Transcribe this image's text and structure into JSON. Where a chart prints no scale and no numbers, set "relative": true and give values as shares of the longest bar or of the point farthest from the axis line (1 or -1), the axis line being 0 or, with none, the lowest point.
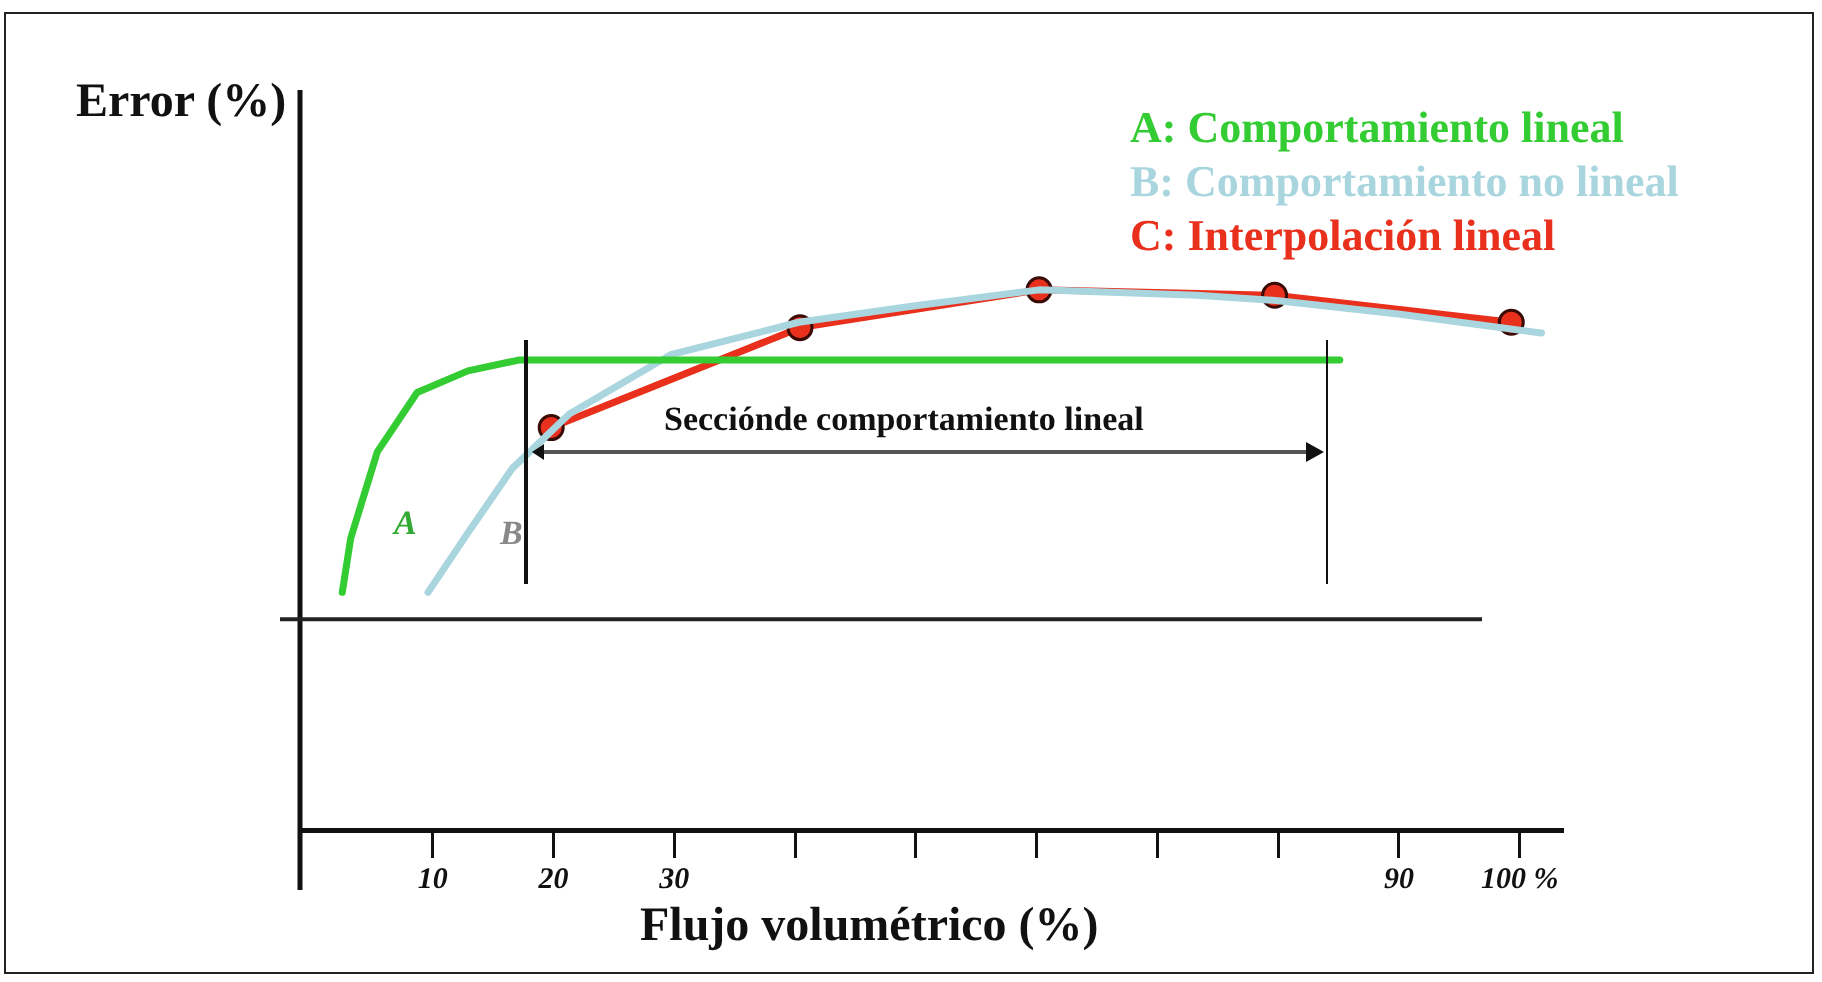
{
  "chart_data": {
    "type": "line",
    "relative": true,
    "xlabel": "Flujo volumétrico (%)",
    "ylabel": "Error (%)",
    "xlim": [
      -1,
      103.5
    ],
    "xticks": [
      10,
      20,
      30,
      {
        "value": 40,
        "label": null
      },
      {
        "value": 50,
        "label": null
      },
      {
        "value": 60,
        "label": null
      },
      {
        "value": 70,
        "label": null
      },
      {
        "value": 80,
        "label": null
      },
      90,
      {
        "value": 100,
        "label": "100 %"
      }
    ],
    "legend": "top right",
    "grid": false,
    "marker": "none",
    "line_style": "solid",
    "series": [
      {
        "name": "A: Comportamiento lineal",
        "color": "#33cc33",
        "x": [
          2.5,
          3.2,
          5.4,
          8.7,
          12.9,
          17.1,
          21.3,
          39.8,
          85.1
        ],
        "values": [
          0.44,
          0.54,
          0.7,
          0.81,
          0.85,
          0.87,
          0.87,
          0.87,
          0.87
        ]
      },
      {
        "name": "B: Comportamiento no lineal",
        "color": "#a9d5df",
        "x": [
          9.6,
          12.9,
          16.6,
          21.3,
          29.7,
          40.3,
          49.8,
          60.2,
          73.3,
          80,
          90.1,
          101.8
        ],
        "values": [
          0.44,
          0.55,
          0.67,
          0.77,
          0.88,
          0.94,
          0.97,
          1,
          0.99,
          0.98,
          0.955,
          0.92
        ]
      },
      {
        "name": "C: Interpolación lineal",
        "color": "#e8301c",
        "marker": "circle",
        "x": [
          19.8,
          40.4,
          60.2,
          79.7,
          99.3
        ],
        "values": [
          0.745,
          0.93,
          1,
          0.99,
          0.94
        ]
      }
    ],
    "ref_lines": [
      {
        "axis": "y",
        "value": 0.39,
        "label": null,
        "color": "#222222"
      }
    ],
    "annotations": [
      "Secciónde comportamiento lineal",
      "A",
      "B"
    ]
  }
}
